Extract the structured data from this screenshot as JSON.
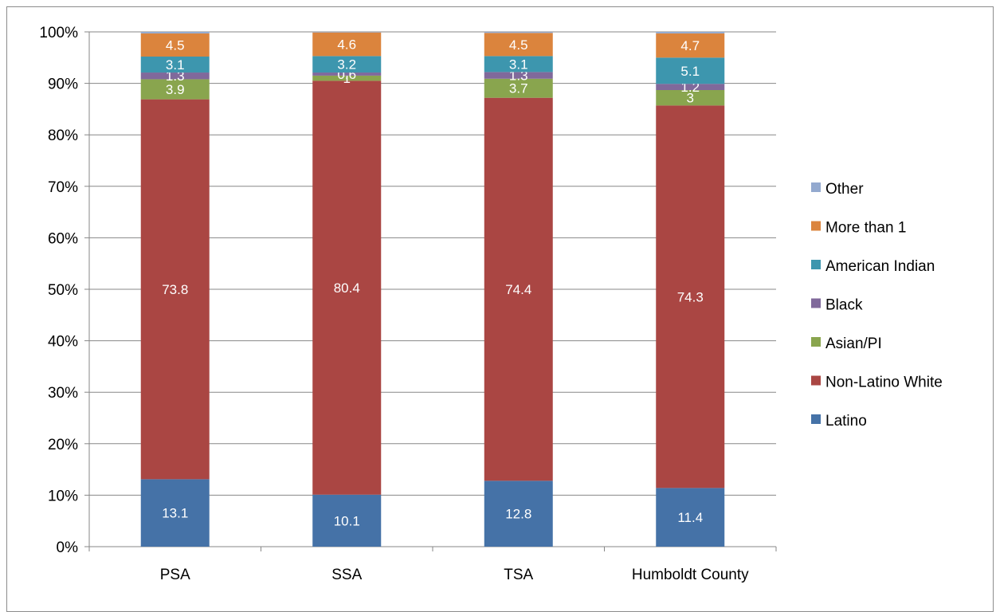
{
  "chart_data": {
    "type": "bar",
    "stacked": true,
    "percent_stacked": true,
    "categories": [
      "PSA",
      "SSA",
      "TSA",
      "Humboldt County"
    ],
    "series": [
      {
        "name": "Latino",
        "color": "#4572a7",
        "values": [
          13.1,
          10.1,
          12.8,
          11.4
        ],
        "labels": [
          "13.1",
          "10.1",
          "12.8",
          "11.4"
        ]
      },
      {
        "name": "Non-Latino White",
        "color": "#aa4643",
        "values": [
          73.8,
          80.4,
          74.4,
          74.3
        ],
        "labels": [
          "73.8",
          "80.4",
          "74.4",
          "74.3"
        ]
      },
      {
        "name": "Asian/PI",
        "color": "#89a54e",
        "values": [
          3.9,
          1,
          3.7,
          3
        ],
        "labels": [
          "3.9",
          "1",
          "3.7",
          "3"
        ]
      },
      {
        "name": "Black",
        "color": "#80699b",
        "values": [
          1.3,
          0.6,
          1.3,
          1.2
        ],
        "labels": [
          "1.3",
          "0.6",
          "1.3",
          "1.2"
        ]
      },
      {
        "name": "American Indian",
        "color": "#3d96ae",
        "values": [
          3.1,
          3.2,
          3.1,
          5.1
        ],
        "labels": [
          "3.1",
          "3.2",
          "3.1",
          "5.1"
        ]
      },
      {
        "name": "More than 1",
        "color": "#db843d",
        "values": [
          4.5,
          4.6,
          4.5,
          4.7
        ],
        "labels": [
          "4.5",
          "4.6",
          "4.5",
          "4.7"
        ]
      },
      {
        "name": "Other",
        "color": "#93a9cf",
        "values": [
          0.3,
          0.1,
          0.2,
          0.3
        ],
        "labels": [
          "",
          "",
          "",
          ""
        ]
      }
    ],
    "yticks": [
      "0%",
      "10%",
      "20%",
      "30%",
      "40%",
      "50%",
      "60%",
      "70%",
      "80%",
      "90%",
      "100%"
    ],
    "ylim": [
      0,
      100
    ],
    "grid": true,
    "legend_position": "right",
    "title": "",
    "xlabel": "",
    "ylabel": ""
  }
}
